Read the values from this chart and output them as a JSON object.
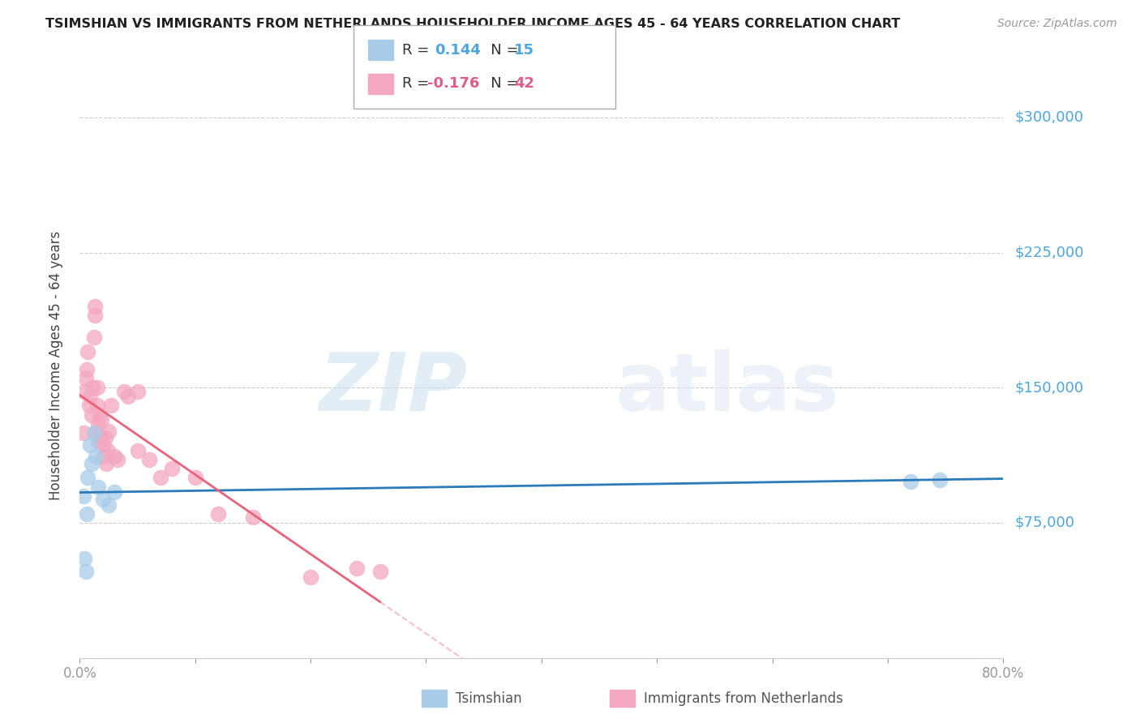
{
  "title": "TSIMSHIAN VS IMMIGRANTS FROM NETHERLANDS HOUSEHOLDER INCOME AGES 45 - 64 YEARS CORRELATION CHART",
  "source": "Source: ZipAtlas.com",
  "ylabel": "Householder Income Ages 45 - 64 years",
  "xlim": [
    0.0,
    0.8
  ],
  "ylim": [
    0,
    325000
  ],
  "ytick_positions": [
    75000,
    150000,
    225000,
    300000
  ],
  "ytick_labels": [
    "$75,000",
    "$150,000",
    "$225,000",
    "$300,000"
  ],
  "watermark_zip": "ZIP",
  "watermark_atlas": "atlas",
  "blue_scatter_color": "#a8cce8",
  "pink_scatter_color": "#f4a7be",
  "blue_line_color": "#2b7bba",
  "pink_line_color": "#e8637a",
  "blue_label": "Tsimshian",
  "pink_label": "Immigrants from Netherlands",
  "legend_R_blue": "R =  0.144",
  "legend_N_blue": "N = 15",
  "legend_R_pink": "R = -0.176",
  "legend_N_pink": "N = 42",
  "legend_val_blue_R": "0.144",
  "legend_val_blue_N": "15",
  "legend_val_pink_R": "-0.176",
  "legend_val_pink_N": "42",
  "tsimshian_x": [
    0.003,
    0.004,
    0.005,
    0.006,
    0.007,
    0.009,
    0.01,
    0.012,
    0.014,
    0.016,
    0.02,
    0.025,
    0.03,
    0.72,
    0.745
  ],
  "tsimshian_y": [
    90000,
    55000,
    48000,
    80000,
    100000,
    118000,
    108000,
    125000,
    112000,
    95000,
    88000,
    85000,
    92000,
    98000,
    99000
  ],
  "netherlands_x": [
    0.003,
    0.004,
    0.005,
    0.006,
    0.007,
    0.008,
    0.009,
    0.01,
    0.011,
    0.012,
    0.013,
    0.013,
    0.014,
    0.015,
    0.015,
    0.016,
    0.016,
    0.017,
    0.018,
    0.019,
    0.02,
    0.021,
    0.022,
    0.023,
    0.024,
    0.025,
    0.027,
    0.03,
    0.033,
    0.038,
    0.042,
    0.05,
    0.06,
    0.07,
    0.08,
    0.1,
    0.12,
    0.15,
    0.2,
    0.24,
    0.26,
    0.05
  ],
  "netherlands_y": [
    125000,
    148000,
    155000,
    160000,
    170000,
    140000,
    145000,
    135000,
    150000,
    178000,
    190000,
    195000,
    125000,
    140000,
    150000,
    120000,
    130000,
    135000,
    122000,
    132000,
    118000,
    112000,
    122000,
    108000,
    115000,
    126000,
    140000,
    112000,
    110000,
    148000,
    145000,
    115000,
    110000,
    100000,
    105000,
    100000,
    80000,
    78000,
    45000,
    50000,
    48000,
    148000
  ]
}
